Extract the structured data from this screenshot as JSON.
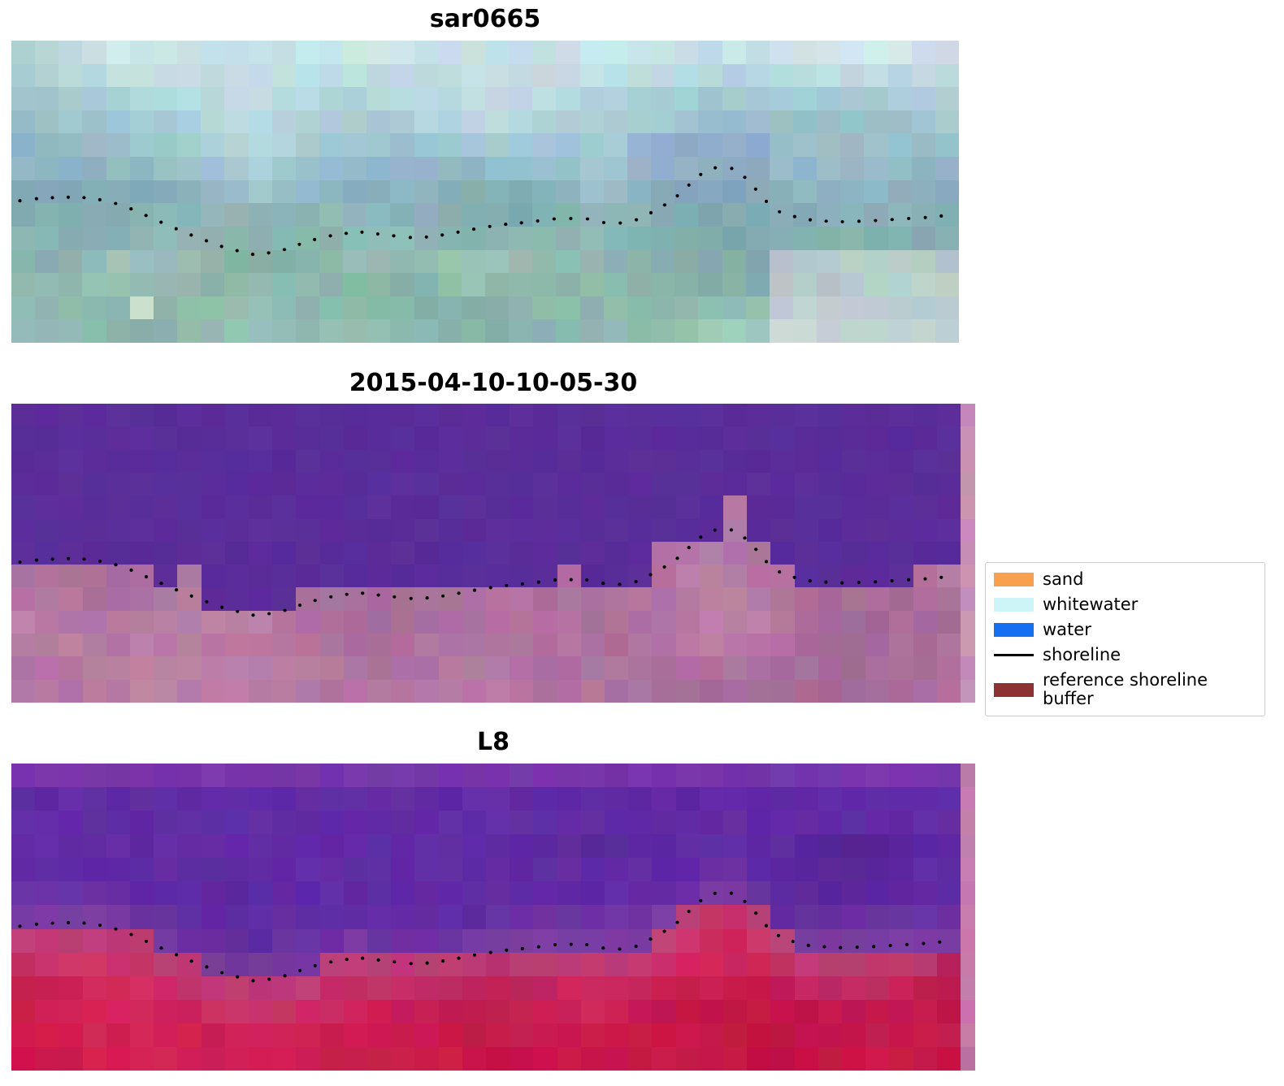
{
  "figure": {
    "background": "#ffffff"
  },
  "panels": [
    {
      "title": "sar0665",
      "mode": "sar",
      "cols": 40,
      "rows": 13,
      "seed": 101,
      "stops": [
        "#c9e4e8",
        "#abd0d8",
        "#93b8c8",
        "#86b2a8",
        "#9ac3b8"
      ],
      "green_accent": "#69a58c",
      "pink_accent": "#dcc8da",
      "blue_accent": "#8f9cc8"
    },
    {
      "title": "2015-04-10-10-05-30",
      "mode": "class",
      "cols": 40,
      "rows": 13,
      "seed": 202,
      "water": "#5a2d9a",
      "land_base": "#b0739f",
      "land_dark": "#96608b",
      "land_light": "#c98fb3",
      "edge": "#c98fb6"
    },
    {
      "title": "L8",
      "mode": "l8",
      "cols": 40,
      "rows": 13,
      "seed": 303,
      "water": "#612ba5",
      "water_dark": "#471f82",
      "water_top": "#8a3fae",
      "shore_halo": "#9a4f9d",
      "land_top": "#c62a62",
      "land_base": "#d01848",
      "land_deep": "#b90f3e",
      "land_dark_accent": "#a80d3a",
      "land_light_accent": "#e23a6a",
      "halo_below": "#b04d8a",
      "edge": "#c479ab"
    }
  ],
  "legend": {
    "items": [
      {
        "label": "sand",
        "color": "#f7a04e",
        "type": "patch"
      },
      {
        "label": "whitewater",
        "color": "#cdf4f6",
        "type": "patch"
      },
      {
        "label": "water",
        "color": "#156ff0",
        "type": "patch"
      },
      {
        "label": "shoreline",
        "color": "#000000",
        "type": "line"
      },
      {
        "label": "reference shoreline buffer",
        "color": "#8c3232",
        "type": "patch"
      }
    ]
  },
  "chart_data": {
    "type": "line",
    "title": "",
    "panel_titles": [
      "sar0665",
      "2015-04-10-10-05-30",
      "L8"
    ],
    "legend_entries": [
      "sand",
      "whitewater",
      "water",
      "shoreline",
      "reference shoreline buffer"
    ],
    "series": [
      {
        "name": "shoreline",
        "style": "black dotted overlay"
      }
    ],
    "shoreline_points_normalized": [
      [
        0.009,
        0.53
      ],
      [
        0.03,
        0.522
      ],
      [
        0.055,
        0.518
      ],
      [
        0.08,
        0.52
      ],
      [
        0.1,
        0.53
      ],
      [
        0.12,
        0.548
      ],
      [
        0.15,
        0.59
      ],
      [
        0.185,
        0.638
      ],
      [
        0.225,
        0.685
      ],
      [
        0.258,
        0.71
      ],
      [
        0.285,
        0.695
      ],
      [
        0.315,
        0.662
      ],
      [
        0.345,
        0.64
      ],
      [
        0.37,
        0.634
      ],
      [
        0.4,
        0.645
      ],
      [
        0.428,
        0.654
      ],
      [
        0.458,
        0.642
      ],
      [
        0.488,
        0.624
      ],
      [
        0.515,
        0.61
      ],
      [
        0.545,
        0.601
      ],
      [
        0.578,
        0.588
      ],
      [
        0.608,
        0.59
      ],
      [
        0.632,
        0.607
      ],
      [
        0.655,
        0.6
      ],
      [
        0.678,
        0.565
      ],
      [
        0.698,
        0.528
      ],
      [
        0.715,
        0.478
      ],
      [
        0.73,
        0.436
      ],
      [
        0.746,
        0.417
      ],
      [
        0.762,
        0.424
      ],
      [
        0.778,
        0.462
      ],
      [
        0.794,
        0.525
      ],
      [
        0.812,
        0.57
      ],
      [
        0.838,
        0.592
      ],
      [
        0.87,
        0.6
      ],
      [
        0.905,
        0.597
      ],
      [
        0.94,
        0.59
      ],
      [
        0.968,
        0.585
      ],
      [
        0.988,
        0.578
      ]
    ]
  }
}
